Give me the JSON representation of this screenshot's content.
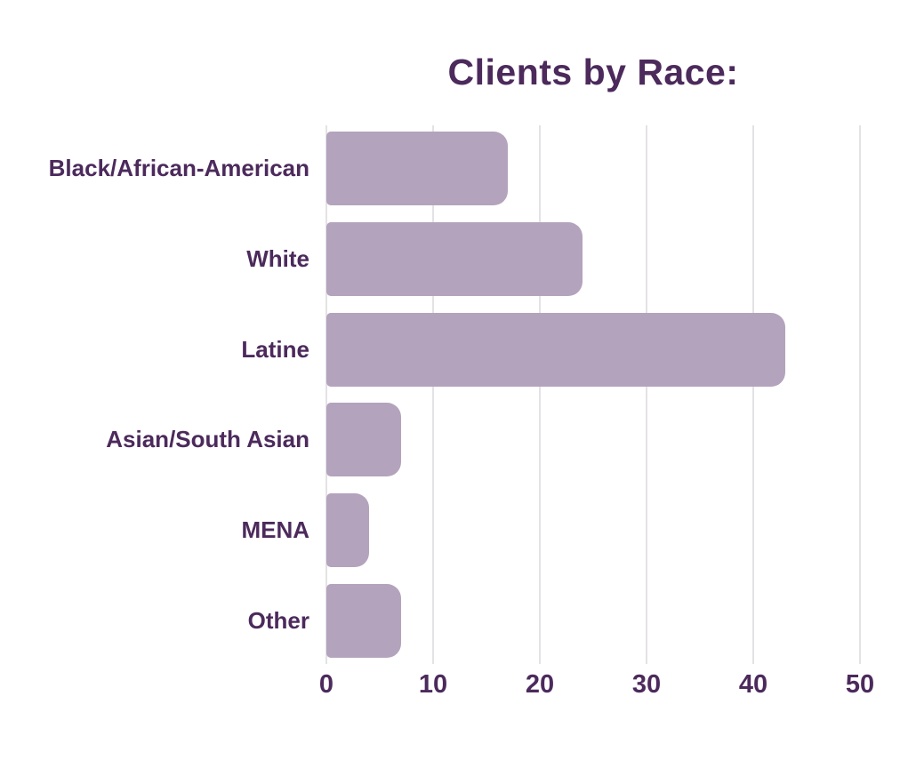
{
  "chart_data": {
    "type": "bar",
    "orientation": "horizontal",
    "title": "Clients by Race:",
    "categories": [
      "Black/African-American",
      "White",
      "Latine",
      "Asian/South Asian",
      "MENA",
      "Other"
    ],
    "values": [
      17,
      24,
      43,
      7,
      4,
      7
    ],
    "xlim": [
      0,
      50
    ],
    "x_ticks": [
      0,
      10,
      20,
      30,
      40,
      50
    ],
    "grid": "vertical",
    "legend": "none",
    "colors": {
      "bar": "#b3a3bc",
      "text": "#4c2a5c",
      "gridline": "#e4e2e6",
      "background": "#ffffff"
    }
  }
}
